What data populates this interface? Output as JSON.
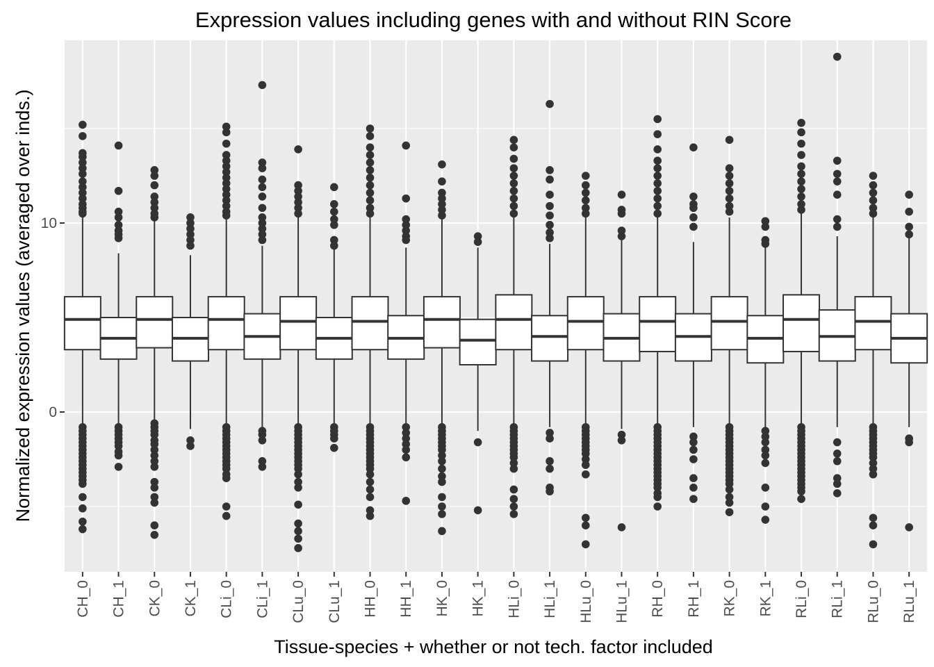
{
  "chart_data": {
    "type": "box",
    "title": "Expression values including genes with and without RIN Score",
    "xlabel": "Tissue-species + whether or not tech. factor included",
    "ylabel": "Normalized expression values (averaged over inds.)",
    "ylim": [
      -8.3,
      19.7
    ],
    "yticks": [
      0,
      10
    ],
    "grid": true,
    "categories": [
      "CH_0",
      "CH_1",
      "CK_0",
      "CK_1",
      "CLi_0",
      "CLi_1",
      "CLu_0",
      "CLu_1",
      "HH_0",
      "HH_1",
      "HK_0",
      "HK_1",
      "HLi_0",
      "HLi_1",
      "HLu_0",
      "HLu_1",
      "RH_0",
      "RH_1",
      "RK_0",
      "RK_1",
      "RLi_0",
      "RLi_1",
      "RLu_0",
      "RLu_1"
    ],
    "boxes": [
      {
        "q1": 3.3,
        "median": 4.9,
        "q3": 6.1,
        "whisker_low": -0.7,
        "whisker_high": 10.3,
        "outliers": [
          15.2,
          14.6,
          13.7,
          13.5,
          13.2,
          12.9,
          12.6,
          12.2,
          11.9,
          11.6,
          11.3,
          11.0,
          10.8,
          10.6,
          10.5,
          -0.8,
          -1.0,
          -1.2,
          -1.4,
          -1.6,
          -1.8,
          -2.0,
          -2.2,
          -2.4,
          -2.6,
          -2.8,
          -3.0,
          -3.2,
          -3.4,
          -3.6,
          -3.8,
          -4.5,
          -5.1,
          -5.8,
          -6.2
        ]
      },
      {
        "q1": 2.8,
        "median": 3.9,
        "q3": 5.0,
        "whisker_low": -0.8,
        "whisker_high": 8.4,
        "outliers": [
          14.1,
          11.7,
          10.6,
          10.3,
          9.9,
          9.6,
          9.4,
          9.2,
          -0.8,
          -1.0,
          -1.2,
          -1.4,
          -1.6,
          -1.8,
          -2.1,
          -2.3,
          -2.9
        ]
      },
      {
        "q1": 3.4,
        "median": 4.9,
        "q3": 6.1,
        "whisker_low": -0.6,
        "whisker_high": 10.2,
        "outliers": [
          12.8,
          12.5,
          12.0,
          11.4,
          11.1,
          10.8,
          10.5,
          10.3,
          -0.6,
          -0.8,
          -1.0,
          -1.2,
          -1.5,
          -1.7,
          -2.0,
          -2.3,
          -2.6,
          -2.9,
          -3.7,
          -4.0,
          -4.5,
          -4.8,
          -6.0,
          -6.5
        ]
      },
      {
        "q1": 2.7,
        "median": 3.9,
        "q3": 5.0,
        "whisker_low": -0.9,
        "whisker_high": 8.3,
        "outliers": [
          10.3,
          10.0,
          9.7,
          9.4,
          9.1,
          8.8,
          -1.5,
          -1.8
        ]
      },
      {
        "q1": 3.3,
        "median": 4.9,
        "q3": 6.1,
        "whisker_low": -0.7,
        "whisker_high": 10.3,
        "outliers": [
          15.1,
          14.8,
          14.2,
          13.6,
          13.3,
          13.0,
          12.7,
          12.4,
          12.1,
          11.8,
          11.5,
          11.2,
          10.9,
          10.6,
          10.4,
          -0.8,
          -1.0,
          -1.2,
          -1.4,
          -1.6,
          -1.8,
          -2.0,
          -2.2,
          -2.4,
          -2.6,
          -2.8,
          -3.0,
          -3.3,
          -3.5,
          -5.0,
          -5.5
        ]
      },
      {
        "q1": 2.8,
        "median": 4.0,
        "q3": 5.2,
        "whisker_low": -0.8,
        "whisker_high": 8.8,
        "outliers": [
          17.3,
          13.2,
          12.9,
          12.3,
          11.9,
          11.4,
          10.8,
          10.3,
          10.0,
          9.7,
          9.4,
          9.1,
          -1.0,
          -1.2,
          -1.5,
          -2.6,
          -2.9
        ]
      },
      {
        "q1": 3.3,
        "median": 4.8,
        "q3": 6.1,
        "whisker_low": -0.7,
        "whisker_high": 10.3,
        "outliers": [
          13.9,
          12.0,
          11.7,
          11.4,
          11.1,
          10.8,
          10.5,
          -0.8,
          -1.0,
          -1.2,
          -1.4,
          -1.6,
          -1.8,
          -2.0,
          -2.2,
          -2.4,
          -2.6,
          -2.8,
          -3.0,
          -3.3,
          -3.7,
          -4.0,
          -4.9,
          -5.9,
          -6.3,
          -6.7,
          -7.2
        ]
      },
      {
        "q1": 2.8,
        "median": 3.9,
        "q3": 5.0,
        "whisker_low": -0.7,
        "whisker_high": 8.6,
        "outliers": [
          11.9,
          11.0,
          10.6,
          10.2,
          9.9,
          9.1,
          8.8,
          -0.8,
          -1.0,
          -1.2,
          -1.4,
          -1.9
        ]
      },
      {
        "q1": 3.3,
        "median": 4.8,
        "q3": 6.1,
        "whisker_low": -0.7,
        "whisker_high": 10.3,
        "outliers": [
          15.0,
          14.6,
          14.0,
          13.6,
          13.2,
          12.8,
          12.4,
          12.0,
          11.6,
          11.2,
          10.8,
          10.5,
          -0.8,
          -1.0,
          -1.2,
          -1.4,
          -1.6,
          -1.8,
          -2.0,
          -2.2,
          -2.4,
          -2.6,
          -2.8,
          -3.0,
          -3.3,
          -3.7,
          -4.1,
          -4.5,
          -5.2,
          -5.5
        ]
      },
      {
        "q1": 2.8,
        "median": 3.9,
        "q3": 5.1,
        "whisker_low": -0.7,
        "whisker_high": 8.7,
        "outliers": [
          14.1,
          11.3,
          10.2,
          9.9,
          9.6,
          9.3,
          9.1,
          -0.8,
          -1.1,
          -1.4,
          -1.7,
          -2.0,
          -2.4,
          -4.7
        ]
      },
      {
        "q1": 3.4,
        "median": 4.9,
        "q3": 6.1,
        "whisker_low": -0.7,
        "whisker_high": 10.2,
        "outliers": [
          13.1,
          12.2,
          11.6,
          11.3,
          11.0,
          10.7,
          10.4,
          -0.8,
          -1.0,
          -1.2,
          -1.4,
          -1.6,
          -1.8,
          -2.0,
          -2.3,
          -2.6,
          -3.0,
          -3.4,
          -3.7,
          -4.5,
          -5.0,
          -5.4,
          -6.3
        ]
      },
      {
        "q1": 2.5,
        "median": 3.8,
        "q3": 4.9,
        "whisker_low": -1.0,
        "whisker_high": 8.7,
        "outliers": [
          9.3,
          9.0,
          -1.6,
          -5.2
        ]
      },
      {
        "q1": 3.3,
        "median": 4.9,
        "q3": 6.2,
        "whisker_low": -0.7,
        "whisker_high": 10.3,
        "outliers": [
          14.4,
          14.0,
          13.4,
          12.9,
          12.5,
          12.1,
          11.7,
          11.3,
          10.9,
          10.5,
          -0.8,
          -1.0,
          -1.2,
          -1.4,
          -1.6,
          -1.8,
          -2.0,
          -2.2,
          -2.4,
          -2.7,
          -3.0,
          -4.1,
          -4.6,
          -5.0,
          -5.4
        ]
      },
      {
        "q1": 2.7,
        "median": 4.0,
        "q3": 5.1,
        "whisker_low": -0.8,
        "whisker_high": 8.9,
        "outliers": [
          16.3,
          12.8,
          12.3,
          11.5,
          10.9,
          10.4,
          9.9,
          9.5,
          9.2,
          -1.1,
          -1.4,
          -2.6,
          -3.0,
          -4.0,
          -4.2
        ]
      },
      {
        "q1": 3.3,
        "median": 4.8,
        "q3": 6.1,
        "whisker_low": -0.7,
        "whisker_high": 10.3,
        "outliers": [
          12.5,
          12.0,
          11.6,
          11.2,
          10.8,
          10.5,
          -0.8,
          -1.0,
          -1.2,
          -1.4,
          -1.6,
          -1.8,
          -2.0,
          -2.2,
          -2.5,
          -2.8,
          -3.3,
          -5.6,
          -6.0,
          -7.0
        ]
      },
      {
        "q1": 2.7,
        "median": 3.9,
        "q3": 5.2,
        "whisker_low": -0.9,
        "whisker_high": 9.1,
        "outliers": [
          11.5,
          10.7,
          10.5,
          9.6,
          9.3,
          -1.2,
          -1.5,
          -6.1
        ]
      },
      {
        "q1": 3.2,
        "median": 4.8,
        "q3": 6.1,
        "whisker_low": -0.7,
        "whisker_high": 10.3,
        "outliers": [
          15.5,
          14.7,
          13.9,
          13.3,
          12.9,
          12.5,
          12.1,
          11.7,
          11.3,
          10.9,
          10.5,
          -0.8,
          -1.0,
          -1.2,
          -1.4,
          -1.6,
          -1.8,
          -2.0,
          -2.2,
          -2.4,
          -2.6,
          -2.8,
          -3.0,
          -3.2,
          -3.4,
          -3.6,
          -3.8,
          -4.0,
          -4.3,
          -4.5,
          -5.0
        ]
      },
      {
        "q1": 2.7,
        "median": 4.0,
        "q3": 5.2,
        "whisker_low": -0.8,
        "whisker_high": 9.0,
        "outliers": [
          14.0,
          11.4,
          11.0,
          10.8,
          10.3,
          9.8,
          -1.3,
          -1.6,
          -2.0,
          -2.5,
          -3.5,
          -4.0,
          -4.6
        ]
      },
      {
        "q1": 3.3,
        "median": 4.8,
        "q3": 6.1,
        "whisker_low": -0.7,
        "whisker_high": 10.3,
        "outliers": [
          14.4,
          12.9,
          12.5,
          12.1,
          11.7,
          11.3,
          10.9,
          10.6,
          -0.8,
          -1.0,
          -1.2,
          -1.4,
          -1.6,
          -1.8,
          -2.0,
          -2.2,
          -2.4,
          -2.6,
          -2.8,
          -3.0,
          -3.2,
          -3.4,
          -3.6,
          -3.8,
          -4.1,
          -4.5,
          -4.8,
          -5.3
        ]
      },
      {
        "q1": 2.6,
        "median": 3.9,
        "q3": 5.1,
        "whisker_low": -0.8,
        "whisker_high": 8.8,
        "outliers": [
          10.1,
          9.8,
          9.1,
          8.9,
          -1.0,
          -1.3,
          -1.6,
          -2.0,
          -2.3,
          -2.7,
          -4.0,
          -5.0,
          -5.7
        ]
      },
      {
        "q1": 3.2,
        "median": 4.9,
        "q3": 6.2,
        "whisker_low": -0.7,
        "whisker_high": 10.5,
        "outliers": [
          15.3,
          14.8,
          14.2,
          13.6,
          13.0,
          12.6,
          12.2,
          11.8,
          11.4,
          11.0,
          10.7,
          -0.8,
          -1.0,
          -1.2,
          -1.4,
          -1.6,
          -1.8,
          -2.0,
          -2.2,
          -2.4,
          -2.6,
          -2.8,
          -3.0,
          -3.2,
          -3.4,
          -3.6,
          -3.8,
          -4.0,
          -4.2,
          -4.6
        ]
      },
      {
        "q1": 2.7,
        "median": 4.0,
        "q3": 5.4,
        "whisker_low": -0.8,
        "whisker_high": 9.3,
        "outliers": [
          18.8,
          13.3,
          12.6,
          12.2,
          11.5,
          10.2,
          9.8,
          -1.6,
          -2.2,
          -2.6,
          -3.5,
          -3.8,
          -4.3
        ]
      },
      {
        "q1": 3.3,
        "median": 4.8,
        "q3": 6.1,
        "whisker_low": -0.7,
        "whisker_high": 10.3,
        "outliers": [
          12.5,
          12.0,
          11.6,
          11.2,
          10.8,
          10.5,
          -0.8,
          -1.0,
          -1.2,
          -1.4,
          -1.6,
          -1.8,
          -2.0,
          -2.2,
          -2.4,
          -2.7,
          -3.0,
          -3.3,
          -5.6,
          -6.0,
          -7.0
        ]
      },
      {
        "q1": 2.6,
        "median": 3.9,
        "q3": 5.2,
        "whisker_low": -0.8,
        "whisker_high": 9.3,
        "outliers": [
          11.5,
          10.6,
          9.8,
          9.4,
          -1.4,
          -1.6,
          -6.1
        ]
      }
    ]
  }
}
